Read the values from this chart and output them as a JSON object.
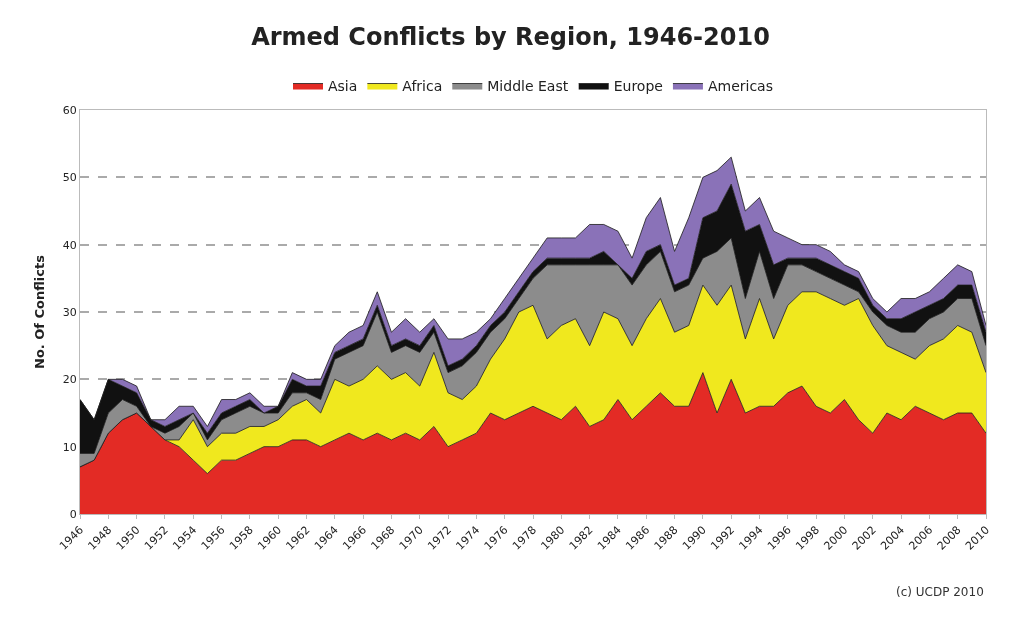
{
  "chart_data": {
    "type": "area",
    "stacked": true,
    "title": "Armed Conflicts by Region, 1946-2010",
    "ylabel": "No. Of Conflicts",
    "x": [
      1946,
      1947,
      1948,
      1949,
      1950,
      1951,
      1952,
      1953,
      1954,
      1955,
      1956,
      1957,
      1958,
      1959,
      1960,
      1961,
      1962,
      1963,
      1964,
      1965,
      1966,
      1967,
      1968,
      1969,
      1970,
      1971,
      1972,
      1973,
      1974,
      1975,
      1976,
      1977,
      1978,
      1979,
      1980,
      1981,
      1982,
      1983,
      1984,
      1985,
      1986,
      1987,
      1988,
      1989,
      1990,
      1991,
      1992,
      1993,
      1994,
      1995,
      1996,
      1997,
      1998,
      1999,
      2000,
      2001,
      2002,
      2003,
      2004,
      2005,
      2006,
      2007,
      2008,
      2009,
      2010
    ],
    "series": [
      {
        "name": "Asia",
        "color": "#e32b25",
        "values": [
          7,
          8,
          12,
          14,
          15,
          13,
          11,
          10,
          8,
          6,
          8,
          8,
          9,
          10,
          10,
          11,
          11,
          10,
          11,
          12,
          11,
          12,
          11,
          12,
          11,
          13,
          10,
          11,
          12,
          15,
          14,
          15,
          16,
          15,
          14,
          16,
          13,
          14,
          17,
          14,
          16,
          18,
          16,
          16,
          21,
          15,
          20,
          15,
          16,
          16,
          18,
          19,
          16,
          15,
          17,
          14,
          12,
          15,
          14,
          16,
          15,
          14,
          15,
          15,
          12
        ]
      },
      {
        "name": "Africa",
        "color": "#f0e81e",
        "values": [
          0,
          0,
          0,
          0,
          0,
          0,
          0,
          1,
          6,
          4,
          4,
          4,
          4,
          3,
          4,
          5,
          6,
          5,
          9,
          7,
          9,
          10,
          9,
          9,
          8,
          11,
          8,
          6,
          7,
          8,
          12,
          15,
          15,
          11,
          14,
          13,
          12,
          16,
          12,
          11,
          13,
          14,
          11,
          12,
          13,
          16,
          14,
          11,
          16,
          10,
          13,
          14,
          17,
          17,
          14,
          18,
          16,
          10,
          10,
          7,
          10,
          12,
          13,
          12,
          9
        ]
      },
      {
        "name": "Middle East",
        "color": "#8c8c8c",
        "values": [
          2,
          1,
          3,
          3,
          1,
          0,
          1,
          2,
          1,
          1,
          2,
          3,
          3,
          2,
          1,
          2,
          1,
          2,
          3,
          5,
          5,
          8,
          4,
          4,
          5,
          3,
          3,
          5,
          5,
          4,
          3,
          2,
          4,
          11,
          9,
          8,
          12,
          7,
          8,
          9,
          8,
          7,
          6,
          6,
          4,
          8,
          7,
          6,
          7,
          6,
          6,
          4,
          3,
          3,
          3,
          1,
          2,
          3,
          3,
          4,
          4,
          4,
          4,
          5,
          4
        ]
      },
      {
        "name": "Europe",
        "color": "#111111",
        "values": [
          8,
          5,
          5,
          2,
          2,
          1,
          1,
          1,
          0,
          1,
          1,
          1,
          1,
          0,
          1,
          2,
          1,
          2,
          1,
          1,
          1,
          1,
          1,
          1,
          1,
          1,
          1,
          1,
          1,
          1,
          1,
          1,
          1,
          1,
          1,
          1,
          1,
          2,
          0,
          1,
          2,
          1,
          1,
          1,
          6,
          6,
          8,
          10,
          4,
          5,
          1,
          1,
          2,
          2,
          2,
          2,
          1,
          1,
          2,
          3,
          2,
          2,
          2,
          2,
          2
        ]
      },
      {
        "name": "Americas",
        "color": "#8a72b8",
        "values": [
          0,
          0,
          0,
          1,
          1,
          0,
          1,
          2,
          1,
          1,
          2,
          1,
          1,
          1,
          0,
          1,
          1,
          1,
          1,
          2,
          2,
          2,
          2,
          3,
          2,
          1,
          4,
          3,
          2,
          1,
          2,
          2,
          2,
          3,
          3,
          3,
          5,
          4,
          5,
          3,
          5,
          7,
          5,
          9,
          6,
          6,
          4,
          3,
          4,
          5,
          3,
          2,
          2,
          2,
          1,
          1,
          1,
          1,
          3,
          2,
          2,
          3,
          3,
          2,
          1
        ]
      }
    ],
    "xlim": [
      1946,
      2010
    ],
    "xticks": [
      1946,
      1948,
      1950,
      1952,
      1954,
      1956,
      1958,
      1960,
      1962,
      1964,
      1966,
      1968,
      1970,
      1972,
      1974,
      1976,
      1978,
      1980,
      1982,
      1984,
      1986,
      1988,
      1990,
      1992,
      1994,
      1996,
      1998,
      2000,
      2002,
      2004,
      2006,
      2008,
      2010
    ],
    "ylim": [
      0,
      60
    ],
    "yticks": [
      0,
      10,
      20,
      30,
      40,
      50,
      60
    ],
    "grid": "y",
    "legend": "top",
    "annotations": [
      "(c) UCDP 2010"
    ]
  }
}
